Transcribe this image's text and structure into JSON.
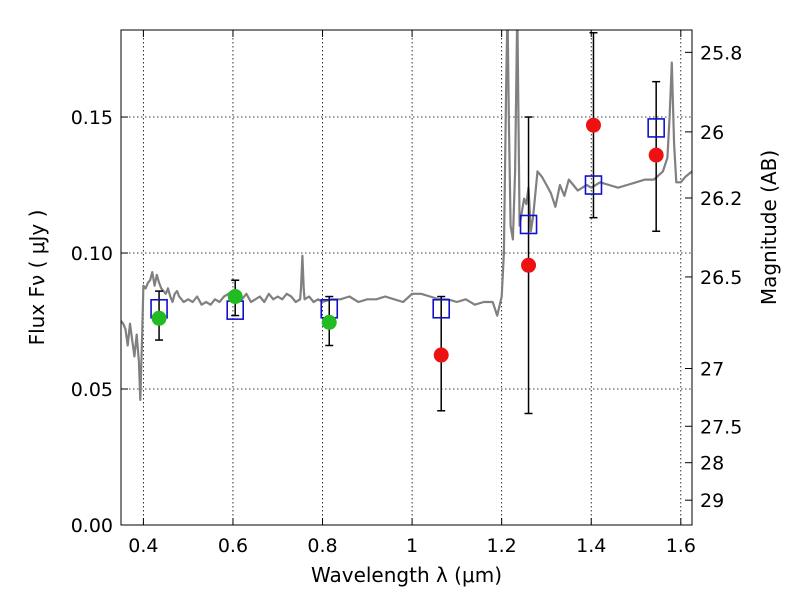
{
  "chart_data": {
    "type": "scatter",
    "xlabel": "Wavelength  λ (μm)",
    "ylabel": "Flux  Fν  ( μJy )",
    "y2label": "Magnitude (AB)",
    "xlim": [
      0.35,
      1.625
    ],
    "ylim": [
      0.0,
      0.182
    ],
    "grid": true,
    "x_ticks": [
      0.4,
      0.6,
      0.8,
      1.0,
      1.2,
      1.4,
      1.6
    ],
    "x_tick_labels": [
      "0.4",
      "0.6",
      "0.8",
      "1",
      "1.2",
      "1.4",
      "1.6"
    ],
    "y_ticks": [
      0.0,
      0.05,
      0.1,
      0.15
    ],
    "y_tick_labels": [
      "0.00",
      "0.05",
      "0.10",
      "0.15"
    ],
    "mag_ticks": [
      25.8,
      26.0,
      26.2,
      26.5,
      27.0,
      27.5,
      28.0,
      29.0
    ],
    "mag_tick_labels": [
      "25.8",
      "26",
      "26.2",
      "26.5",
      "27",
      "27.5",
      "28",
      "29"
    ],
    "colors": {
      "model": "#808080",
      "green": "#22bb22",
      "red": "#ee1111",
      "square": "#1111cc",
      "errorbar": "#000000"
    },
    "model_spectrum": {
      "name": "model SED",
      "x": [
        0.35,
        0.355,
        0.36,
        0.365,
        0.37,
        0.375,
        0.38,
        0.385,
        0.39,
        0.393,
        0.397,
        0.4,
        0.405,
        0.41,
        0.415,
        0.42,
        0.425,
        0.43,
        0.435,
        0.44,
        0.445,
        0.45,
        0.455,
        0.46,
        0.465,
        0.47,
        0.475,
        0.48,
        0.485,
        0.49,
        0.5,
        0.51,
        0.52,
        0.53,
        0.54,
        0.55,
        0.56,
        0.57,
        0.58,
        0.59,
        0.6,
        0.61,
        0.62,
        0.63,
        0.64,
        0.65,
        0.66,
        0.67,
        0.68,
        0.69,
        0.7,
        0.71,
        0.72,
        0.73,
        0.74,
        0.75,
        0.752,
        0.755,
        0.758,
        0.76,
        0.77,
        0.78,
        0.79,
        0.8,
        0.82,
        0.84,
        0.86,
        0.88,
        0.9,
        0.92,
        0.94,
        0.96,
        0.98,
        1.0,
        1.02,
        1.04,
        1.06,
        1.08,
        1.1,
        1.12,
        1.14,
        1.16,
        1.18,
        1.19,
        1.2,
        1.205,
        1.21,
        1.213,
        1.216,
        1.22,
        1.225,
        1.23,
        1.235,
        1.24,
        1.245,
        1.25,
        1.255,
        1.26,
        1.265,
        1.27,
        1.28,
        1.29,
        1.3,
        1.31,
        1.32,
        1.33,
        1.34,
        1.35,
        1.36,
        1.37,
        1.38,
        1.39,
        1.4,
        1.42,
        1.44,
        1.46,
        1.48,
        1.5,
        1.52,
        1.54,
        1.56,
        1.57,
        1.575,
        1.58,
        1.585,
        1.59,
        1.6,
        1.61,
        1.625
      ],
      "y": [
        0.075,
        0.074,
        0.072,
        0.066,
        0.074,
        0.068,
        0.062,
        0.07,
        0.06,
        0.046,
        0.068,
        0.088,
        0.087,
        0.089,
        0.09,
        0.093,
        0.088,
        0.092,
        0.089,
        0.087,
        0.086,
        0.085,
        0.087,
        0.084,
        0.082,
        0.085,
        0.086,
        0.084,
        0.083,
        0.082,
        0.083,
        0.082,
        0.084,
        0.081,
        0.082,
        0.081,
        0.083,
        0.082,
        0.084,
        0.085,
        0.086,
        0.084,
        0.083,
        0.085,
        0.082,
        0.083,
        0.084,
        0.082,
        0.085,
        0.083,
        0.084,
        0.083,
        0.085,
        0.084,
        0.082,
        0.083,
        0.087,
        0.099,
        0.087,
        0.083,
        0.084,
        0.082,
        0.083,
        0.082,
        0.083,
        0.083,
        0.084,
        0.082,
        0.083,
        0.083,
        0.084,
        0.083,
        0.082,
        0.085,
        0.085,
        0.084,
        0.083,
        0.083,
        0.082,
        0.083,
        0.081,
        0.082,
        0.082,
        0.077,
        0.084,
        0.1,
        0.16,
        0.19,
        0.15,
        0.11,
        0.105,
        0.13,
        0.19,
        0.11,
        0.115,
        0.12,
        0.118,
        0.124,
        0.108,
        0.113,
        0.13,
        0.128,
        0.125,
        0.122,
        0.117,
        0.125,
        0.121,
        0.127,
        0.125,
        0.123,
        0.124,
        0.125,
        0.124,
        0.126,
        0.125,
        0.124,
        0.125,
        0.126,
        0.127,
        0.127,
        0.13,
        0.135,
        0.15,
        0.17,
        0.14,
        0.126,
        0.126,
        0.128,
        0.13
      ]
    },
    "series": [
      {
        "name": "green points",
        "marker": "circle",
        "x": [
          0.435,
          0.605,
          0.815
        ],
        "y": [
          0.076,
          0.084,
          0.0745
        ],
        "yerr_low": [
          0.068,
          0.077,
          0.066
        ],
        "yerr_high": [
          0.086,
          0.09,
          0.084
        ]
      },
      {
        "name": "red points",
        "marker": "circle",
        "x": [
          1.065,
          1.26,
          1.405,
          1.545
        ],
        "y": [
          0.0625,
          0.0955,
          0.147,
          0.136
        ],
        "yerr_low": [
          0.042,
          0.041,
          0.113,
          0.108
        ],
        "yerr_high": [
          0.084,
          0.15,
          0.181,
          0.163
        ]
      },
      {
        "name": "model synthetic photometry",
        "marker": "open-square",
        "x": [
          0.435,
          0.605,
          0.815,
          1.065,
          1.26,
          1.405,
          1.545
        ],
        "y": [
          0.0795,
          0.079,
          0.0795,
          0.0795,
          0.1105,
          0.125,
          0.146
        ]
      }
    ]
  }
}
